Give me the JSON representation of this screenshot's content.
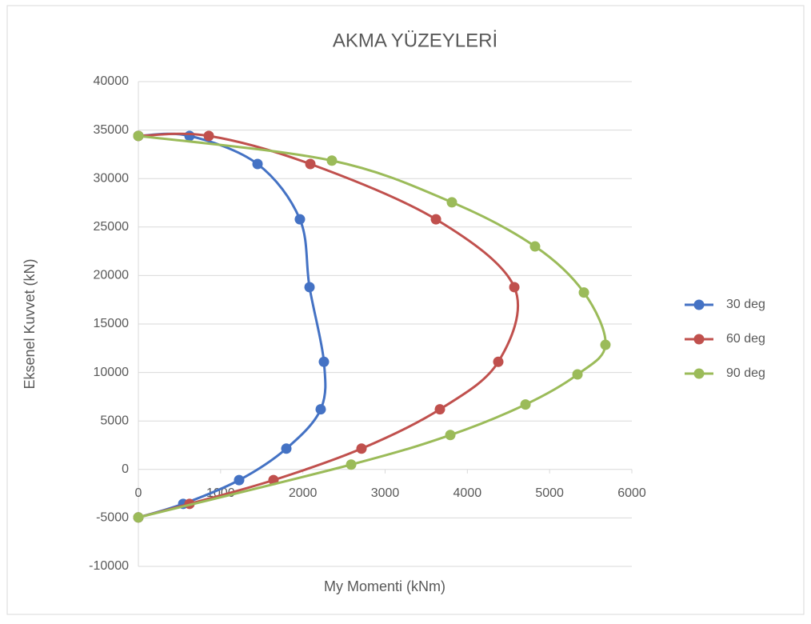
{
  "chart_data": {
    "type": "scatter",
    "smooth": true,
    "title": "AKMA YÜZEYLERİ",
    "x_label": "My Momenti (kNm)",
    "y_label": "Eksenel Kuvvet (kN)",
    "xlim": [
      0,
      6000
    ],
    "xticks": [
      0,
      1000,
      2000,
      3000,
      4000,
      5000,
      6000
    ],
    "ylim": [
      -10000,
      40000
    ],
    "yticks": [
      -10000,
      -5000,
      0,
      5000,
      10000,
      15000,
      20000,
      25000,
      30000,
      35000,
      40000
    ],
    "grid": true,
    "legend": "right",
    "series": [
      {
        "name": "30 deg",
        "color": "#4472c4",
        "x": [
          0,
          622,
          1449,
          1964,
          2081,
          2256,
          2217,
          1799,
          1225,
          545,
          0
        ],
        "values": [
          34400,
          34400,
          31500,
          25800,
          18800,
          11100,
          6200,
          2150,
          -1100,
          -3550,
          -4950
        ]
      },
      {
        "name": "60 deg",
        "color": "#c0504d",
        "x": [
          0,
          856,
          2091,
          3618,
          4571,
          4376,
          3666,
          2713,
          1643,
          622,
          0
        ],
        "values": [
          34400,
          34400,
          31500,
          25800,
          18800,
          11100,
          6200,
          2150,
          -1100,
          -3550,
          -4950
        ]
      },
      {
        "name": "90 deg",
        "color": "#9bbb59",
        "x": [
          0,
          2353,
          3812,
          4823,
          5417,
          5679,
          5339,
          4707,
          3793,
          2587,
          0
        ],
        "values": [
          34400,
          31850,
          27550,
          23000,
          18250,
          12850,
          9800,
          6700,
          3550,
          500,
          -4950
        ]
      }
    ]
  }
}
